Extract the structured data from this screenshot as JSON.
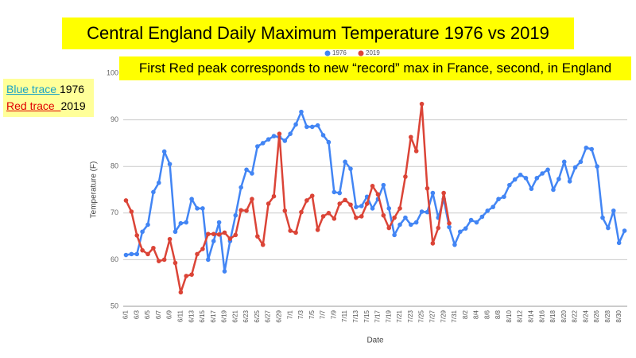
{
  "chart_data": {
    "type": "line",
    "title": "Central England Daily Maximum Temperature 1976 vs 2019",
    "annotation": "First Red peak corresponds to new “record” max in France, second, in England",
    "key_notes": [
      {
        "label": "Blue trace ",
        "year": "1976",
        "color": "#1aa3c4"
      },
      {
        "label": "Red trace  ",
        "year": "2019",
        "color": "#e00000"
      }
    ],
    "y_label": "Temperature (F)",
    "x_label": "Date",
    "categories": [
      "6/1",
      null,
      "6/3",
      null,
      "6/5",
      null,
      "6/7",
      null,
      "6/9",
      null,
      "6/11",
      null,
      "6/13",
      null,
      "6/15",
      null,
      "6/17",
      null,
      "6/19",
      null,
      "6/21",
      null,
      "6/23",
      null,
      "6/25",
      null,
      "6/27",
      null,
      "6/29",
      null,
      "7/1",
      null,
      "7/3",
      null,
      "7/5",
      null,
      "7/7",
      null,
      "7/9",
      null,
      "7/11",
      null,
      "7/13",
      null,
      "7/15",
      null,
      "7/17",
      null,
      "7/19",
      null,
      "7/21",
      null,
      "7/23",
      null,
      "7/25",
      null,
      "7/27",
      null,
      "7/29",
      null,
      "7/31",
      null,
      "8/2",
      null,
      "8/4",
      null,
      "8/6",
      null,
      "8/8",
      null,
      "8/10",
      null,
      "8/12",
      null,
      "8/14",
      null,
      "8/16",
      null,
      "8/18",
      null,
      "8/20",
      null,
      "8/22",
      null,
      "8/24",
      null,
      "8/26",
      null,
      "8/28",
      null,
      "8/30",
      null
    ],
    "series": [
      {
        "name": "1976",
        "color": "#4285f4",
        "values": [
          61,
          61.2,
          61.2,
          66,
          67.5,
          74.5,
          76.5,
          83.2,
          80.5,
          66,
          67.8,
          68,
          73,
          71,
          71,
          60,
          64,
          68,
          57.5,
          64,
          69.5,
          75.5,
          79.3,
          78.5,
          84.3,
          85,
          85.8,
          86.5,
          86.3,
          85.5,
          87,
          89,
          91.7,
          88.5,
          88.5,
          88.8,
          86.7,
          85.2,
          74.5,
          74.3,
          81,
          79.5,
          71.3,
          71.5,
          73.5,
          71,
          73,
          76,
          71,
          65.3,
          67.5,
          69,
          67.5,
          68,
          70.3,
          70.2,
          74.3,
          69,
          73,
          67,
          63.2,
          66,
          66.7,
          68.5,
          68,
          69.2,
          70.5,
          71.3,
          73,
          73.5,
          76,
          77.2,
          78.2,
          77.5,
          75.2,
          77.5,
          78.5,
          79.3,
          75,
          77.3,
          81,
          76.8,
          79.8,
          81,
          84,
          83.7,
          80,
          69,
          66.8,
          70.5,
          63.6,
          66.2
        ]
      },
      {
        "name": "2019",
        "color": "#db4437",
        "values": [
          72.7,
          70.3,
          65.2,
          62,
          61.2,
          62.5,
          59.7,
          60,
          64.4,
          59.3,
          53,
          56.5,
          56.8,
          61.2,
          62.3,
          65.5,
          65.5,
          65.4,
          65.8,
          64.5,
          65.3,
          70.6,
          70.5,
          73,
          65,
          63.2,
          72,
          73.6,
          87,
          70.5,
          66.2,
          65.8,
          70.2,
          72.7,
          73.7,
          66.4,
          69.3,
          70,
          68.8,
          72,
          72.8,
          71.8,
          69,
          69.3,
          72,
          75.8,
          74,
          69.5,
          66.8,
          69,
          71,
          77.8,
          86.3,
          83.3,
          93.4,
          75.3,
          63.5,
          66.8,
          74.3,
          67.8,
          null,
          null,
          null,
          null,
          null,
          null,
          null,
          null,
          null,
          null,
          null,
          null,
          null,
          null,
          null,
          null,
          null,
          null,
          null,
          null,
          null,
          null,
          null,
          null,
          null,
          null,
          null,
          null,
          null,
          null,
          null,
          null
        ]
      }
    ],
    "ylim": [
      50,
      100
    ],
    "yticks": [
      50,
      60,
      70,
      80,
      90,
      100
    ],
    "grid": true,
    "legend": "top"
  }
}
